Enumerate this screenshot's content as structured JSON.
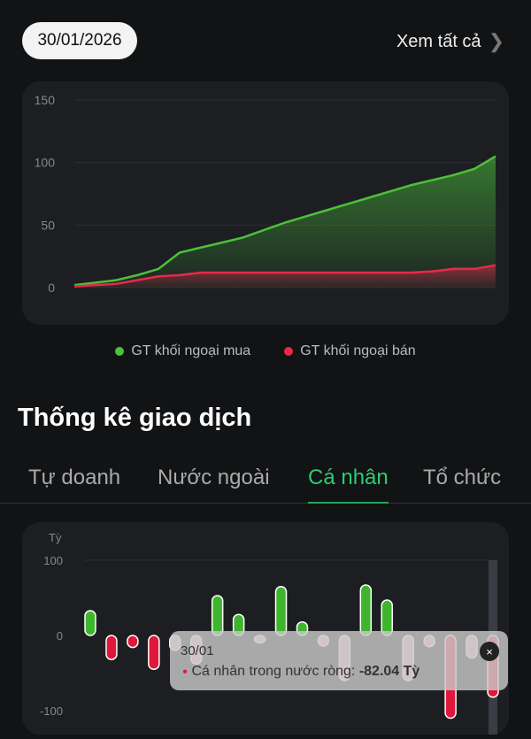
{
  "header": {
    "date": "30/01/2026",
    "see_all": "Xem tất cả"
  },
  "chart_data": [
    {
      "type": "area",
      "ylim": [
        0,
        150
      ],
      "yticks": [
        "0",
        "50",
        "100",
        "150"
      ],
      "grid": true,
      "legend": "bottom",
      "series": [
        {
          "name": "GT khối ngoại mua",
          "color": "#4cc13a",
          "values": [
            2,
            4,
            6,
            10,
            15,
            28,
            32,
            36,
            40,
            46,
            52,
            57,
            62,
            67,
            72,
            77,
            82,
            86,
            90,
            95,
            105
          ]
        },
        {
          "name": "GT khối ngoại bán",
          "color": "#e8294a",
          "values": [
            1,
            2,
            3,
            6,
            9,
            10,
            12,
            12,
            12,
            12,
            12,
            12,
            12,
            12,
            12,
            12,
            12,
            13,
            15,
            15,
            18
          ]
        }
      ]
    },
    {
      "type": "bar",
      "ylabel": "Tỳ",
      "ylim": [
        -100,
        100
      ],
      "yticks": [
        "-100",
        "0",
        "100"
      ],
      "grid": true,
      "values": [
        33,
        -32,
        -16,
        -45,
        -20,
        -38,
        53,
        28,
        -10,
        65,
        18,
        -14,
        -60,
        67,
        47,
        -60,
        -15,
        -110,
        -30,
        -82.04
      ],
      "colors": {
        "positive": "#3fb52e",
        "negative": "#e0173c",
        "faded": "#f6b3c0"
      }
    }
  ],
  "section_title": "Thống kê giao dịch",
  "tabs": [
    {
      "label": "Tự doanh"
    },
    {
      "label": "Nước ngoài"
    },
    {
      "label": "Cá nhân",
      "active": true
    },
    {
      "label": "Tổ chức"
    }
  ],
  "tooltip": {
    "date": "30/01",
    "label": "Cá nhân trong nước ròng:",
    "value": "-82.04 Tỳ",
    "close": "×"
  }
}
